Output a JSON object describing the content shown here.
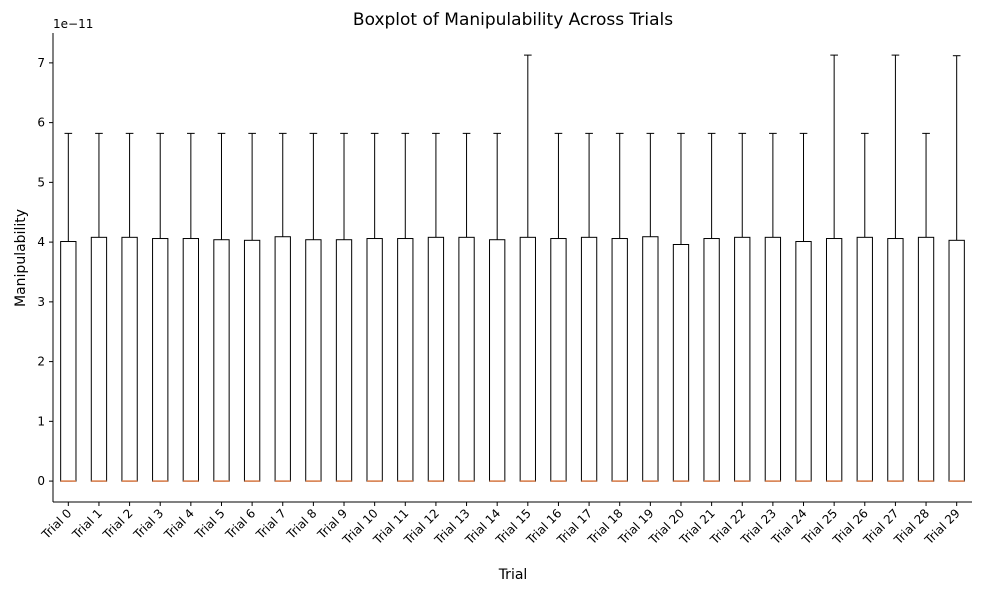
{
  "chart_data": {
    "type": "box",
    "title": "Boxplot of Manipulability Across Trials",
    "xlabel": "Trial",
    "ylabel": "Manipulability",
    "y_offset_label": "1e−11",
    "y_scale_exponent": -11,
    "ylim": [
      -0.35,
      7.5
    ],
    "yticks": [
      0,
      1,
      2,
      3,
      4,
      5,
      6,
      7
    ],
    "grid": false,
    "median_color": "#dd8452",
    "box_color": "#000000",
    "categories": [
      "Trial 0",
      "Trial 1",
      "Trial 2",
      "Trial 3",
      "Trial 4",
      "Trial 5",
      "Trial 6",
      "Trial 7",
      "Trial 8",
      "Trial 9",
      "Trial 10",
      "Trial 11",
      "Trial 12",
      "Trial 13",
      "Trial 14",
      "Trial 15",
      "Trial 16",
      "Trial 17",
      "Trial 18",
      "Trial 19",
      "Trial 20",
      "Trial 21",
      "Trial 22",
      "Trial 23",
      "Trial 24",
      "Trial 25",
      "Trial 26",
      "Trial 27",
      "Trial 28",
      "Trial 29"
    ],
    "whislo": [
      0,
      0,
      0,
      0,
      0,
      0,
      0,
      0,
      0,
      0,
      0,
      0,
      0,
      0,
      0,
      0,
      0,
      0,
      0,
      0,
      0,
      0,
      0,
      0,
      0,
      0,
      0,
      0,
      0,
      0
    ],
    "q1": [
      0,
      0,
      0,
      0,
      0,
      0,
      0,
      0,
      0,
      0,
      0,
      0,
      0,
      0,
      0,
      0,
      0,
      0,
      0,
      0,
      0,
      0,
      0,
      0,
      0,
      0,
      0,
      0,
      0,
      0
    ],
    "median": [
      0,
      0,
      0,
      0,
      0,
      0,
      0,
      0,
      0,
      0,
      0,
      0,
      0,
      0,
      0,
      0,
      0,
      0,
      0,
      0,
      0,
      0,
      0,
      0,
      0,
      0,
      0,
      0,
      0,
      0
    ],
    "q3": [
      4.01,
      4.08,
      4.08,
      4.06,
      4.06,
      4.04,
      4.03,
      4.09,
      4.04,
      4.04,
      4.06,
      4.06,
      4.08,
      4.08,
      4.04,
      4.08,
      4.06,
      4.08,
      4.06,
      4.09,
      3.96,
      4.06,
      4.08,
      4.08,
      4.01,
      4.06,
      4.08,
      4.06,
      4.08,
      4.03
    ],
    "whishi": [
      5.82,
      5.82,
      5.82,
      5.82,
      5.82,
      5.82,
      5.82,
      5.82,
      5.82,
      5.82,
      5.82,
      5.82,
      5.82,
      5.82,
      5.82,
      7.13,
      5.82,
      5.82,
      5.82,
      5.82,
      5.82,
      5.82,
      5.82,
      5.82,
      5.82,
      7.13,
      5.82,
      7.13,
      5.82,
      7.12
    ]
  }
}
